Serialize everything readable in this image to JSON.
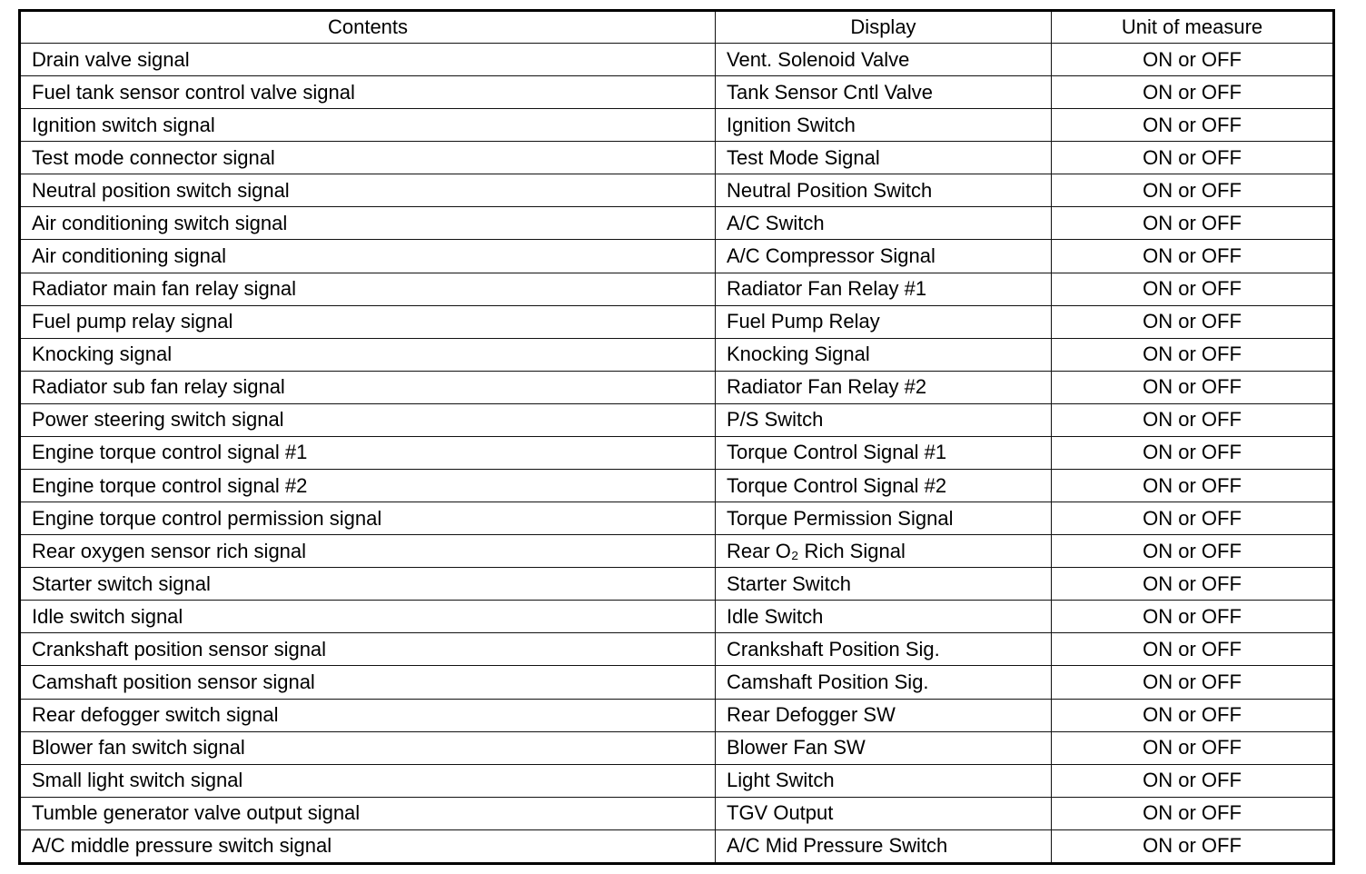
{
  "table": {
    "headers": [
      "Contents",
      "Display",
      "Unit of measure"
    ],
    "rows": [
      [
        "Drain valve signal",
        "Vent. Solenoid Valve",
        "ON or OFF"
      ],
      [
        "Fuel tank sensor control valve signal",
        "Tank Sensor Cntl Valve",
        "ON or OFF"
      ],
      [
        "Ignition switch signal",
        "Ignition Switch",
        "ON or OFF"
      ],
      [
        "Test mode connector signal",
        "Test Mode Signal",
        "ON or OFF"
      ],
      [
        "Neutral position switch signal",
        "Neutral Position Switch",
        "ON or OFF"
      ],
      [
        "Air conditioning switch signal",
        "A/C Switch",
        "ON or OFF"
      ],
      [
        "Air conditioning signal",
        "A/C Compressor Signal",
        "ON or OFF"
      ],
      [
        "Radiator main fan relay signal",
        "Radiator Fan Relay #1",
        "ON or OFF"
      ],
      [
        "Fuel pump relay signal",
        "Fuel Pump Relay",
        "ON or OFF"
      ],
      [
        "Knocking signal",
        "Knocking Signal",
        "ON or OFF"
      ],
      [
        "Radiator sub fan relay signal",
        "Radiator Fan Relay #2",
        "ON or OFF"
      ],
      [
        "Power steering switch signal",
        "P/S Switch",
        "ON or OFF"
      ],
      [
        "Engine torque control signal #1",
        "Torque Control Signal #1",
        "ON or OFF"
      ],
      [
        "Engine torque control signal #2",
        "Torque Control Signal #2",
        "ON or OFF"
      ],
      [
        "Engine torque control permission signal",
        "Torque Permission Signal",
        "ON or OFF"
      ],
      [
        "Rear oxygen sensor rich signal",
        "Rear O₂ Rich Signal",
        "ON or OFF"
      ],
      [
        "Starter switch signal",
        "Starter Switch",
        "ON or OFF"
      ],
      [
        "Idle switch signal",
        "Idle Switch",
        "ON or OFF"
      ],
      [
        "Crankshaft position sensor signal",
        "Crankshaft Position Sig.",
        "ON or OFF"
      ],
      [
        "Camshaft position sensor signal",
        "Camshaft Position Sig.",
        "ON or OFF"
      ],
      [
        "Rear defogger switch signal",
        "Rear Defogger SW",
        "ON or OFF"
      ],
      [
        "Blower fan switch signal",
        "Blower Fan SW",
        "ON or OFF"
      ],
      [
        "Small light switch signal",
        "Light Switch",
        "ON or OFF"
      ],
      [
        "Tumble generator valve output signal",
        "TGV Output",
        "ON or OFF"
      ],
      [
        "A/C middle pressure switch signal",
        "A/C Mid Pressure Switch",
        "ON or OFF"
      ]
    ]
  }
}
